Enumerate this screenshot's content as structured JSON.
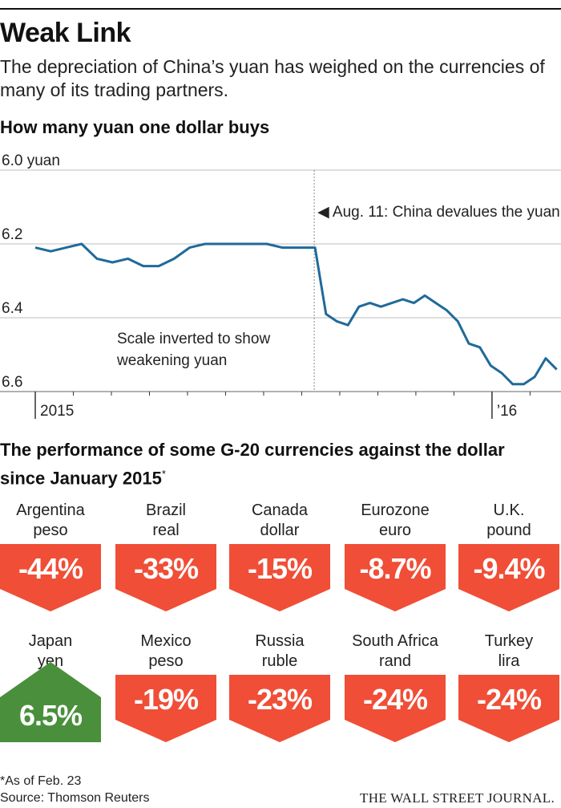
{
  "header": {
    "title": "Weak Link",
    "subtitle": "The depreciation of China’s yuan has weighed on the currencies of many of its trading partners."
  },
  "chart_data": [
    {
      "type": "line",
      "title": "How many yuan one dollar buys",
      "ylabel": "6.0 yuan",
      "y_ticks": [
        "6.0 yuan",
        "6.2",
        "6.4",
        "6.6"
      ],
      "y_tick_values": [
        6.0,
        6.2,
        6.4,
        6.6
      ],
      "ylim": [
        6.6,
        6.0
      ],
      "y_inverted": true,
      "x_labels": [
        "2015",
        "’16"
      ],
      "annotation_event": "◀ Aug. 11: China devalues the yuan.",
      "annotation_scale": [
        "Scale inverted to show",
        "weakening yuan"
      ],
      "series": [
        {
          "name": "Yuan per dollar",
          "x": [
            "Jan 2015",
            "Jan 2015",
            "Feb 2015",
            "Feb 2015",
            "Feb 2015",
            "Mar 2015",
            "Mar 2015",
            "Mar 2015",
            "Apr 2015",
            "Apr 2015",
            "Apr 2015",
            "May 2015",
            "May 2015",
            "May 2015",
            "Jun 2015",
            "Jun 2015",
            "Jul 2015",
            "Jul 2015",
            "Aug 10 2015",
            "Aug 11 2015",
            "Aug 12 2015",
            "Aug 2015",
            "Sep 2015",
            "Sep 2015",
            "Sep 2015",
            "Oct 2015",
            "Oct 2015",
            "Oct 2015",
            "Nov 2015",
            "Nov 2015",
            "Nov 2015",
            "Dec 2015",
            "Dec 2015",
            "Dec 2015",
            "Dec 2015",
            "Jan 2016",
            "Jan 2016",
            "Jan 2016",
            "Jan 2016",
            "Feb 2016",
            "Feb 2016",
            "Feb 2016"
          ],
          "values": [
            6.21,
            6.22,
            6.21,
            6.2,
            6.24,
            6.25,
            6.24,
            6.26,
            6.26,
            6.24,
            6.21,
            6.2,
            6.2,
            6.2,
            6.2,
            6.2,
            6.21,
            6.21,
            6.21,
            6.21,
            6.39,
            6.41,
            6.42,
            6.37,
            6.36,
            6.37,
            6.36,
            6.35,
            6.36,
            6.34,
            6.36,
            6.38,
            6.41,
            6.47,
            6.48,
            6.53,
            6.55,
            6.58,
            6.58,
            6.56,
            6.51,
            6.54
          ]
        }
      ]
    },
    {
      "type": "table",
      "title": "The performance of some G-20 currencies against the dollar since January 2015",
      "title_mark": "*",
      "categories": [
        "Argentina peso",
        "Brazil real",
        "Canada dollar",
        "Eurozone euro",
        "U.K. pound",
        "Japan yen",
        "Mexico peso",
        "Russia ruble",
        "South Africa rand",
        "Turkey lira"
      ],
      "values": [
        -44,
        -33,
        -15,
        -8.7,
        -9.4,
        6.5,
        -19,
        -23,
        -24,
        -24
      ],
      "display": [
        "-44%",
        "-33%",
        "-15%",
        "-8.7%",
        "-9.4%",
        "6.5%",
        "-19%",
        "-23%",
        "-24%",
        "-24%"
      ]
    }
  ],
  "currencies": [
    {
      "line1": "Argentina",
      "line2": "peso",
      "value": "-44%",
      "sign": "neg"
    },
    {
      "line1": "Brazil",
      "line2": "real",
      "value": "-33%",
      "sign": "neg"
    },
    {
      "line1": "Canada",
      "line2": "dollar",
      "value": "-15%",
      "sign": "neg"
    },
    {
      "line1": "Eurozone",
      "line2": "euro",
      "value": "-8.7%",
      "sign": "neg"
    },
    {
      "line1": "U.K.",
      "line2": "pound",
      "value": "-9.4%",
      "sign": "neg"
    },
    {
      "line1": "Japan",
      "line2": "yen",
      "value": "6.5%",
      "sign": "pos"
    },
    {
      "line1": "Mexico",
      "line2": "peso",
      "value": "-19%",
      "sign": "neg"
    },
    {
      "line1": "Russia",
      "line2": "ruble",
      "value": "-23%",
      "sign": "neg"
    },
    {
      "line1": "South Africa",
      "line2": "rand",
      "value": "-24%",
      "sign": "neg"
    },
    {
      "line1": "Turkey",
      "line2": "lira",
      "value": "-24%",
      "sign": "neg"
    }
  ],
  "colors": {
    "line": "#1f6a9a",
    "negative": "#f04e37",
    "positive": "#4a8f3c",
    "grid": "#bcbcbc"
  },
  "footer": {
    "note": "*As of Feb. 23",
    "source": "Source: Thomson Reuters",
    "brand": "THE WALL STREET JOURNAL."
  }
}
